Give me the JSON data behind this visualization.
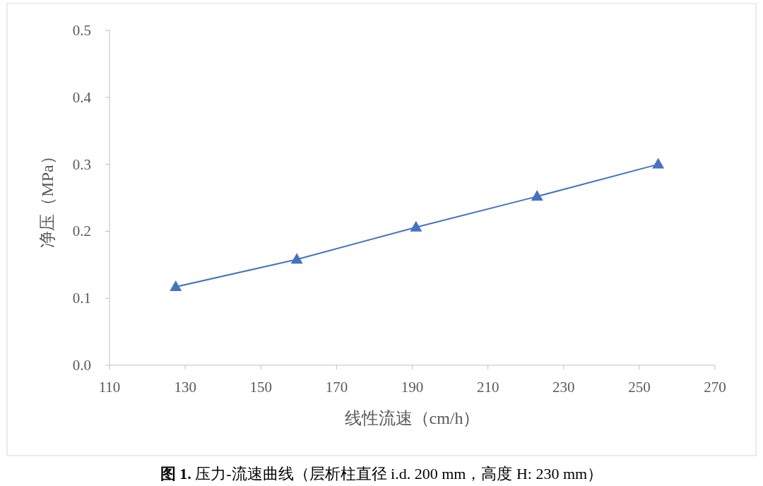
{
  "chart_data": {
    "type": "line",
    "xlabel": "线性流速（cm/h）",
    "ylabel": "净压（MPa）",
    "x": [
      127.5,
      159.5,
      191,
      223,
      255
    ],
    "series": [
      {
        "color": "#4472c4",
        "values": [
          0.117,
          0.158,
          0.206,
          0.252,
          0.3
        ]
      }
    ],
    "marker": "triangle",
    "line_style": "solid",
    "grid": false,
    "xlim": [
      110,
      270
    ],
    "xticks": [
      110,
      130,
      150,
      170,
      190,
      210,
      230,
      250,
      270
    ],
    "ylim": [
      0,
      0.5
    ],
    "yticks": [
      {
        "value": 0,
        "label": "0.0"
      },
      0.1,
      0.2,
      0.3,
      0.4,
      0.5
    ],
    "annotations": [
      "**图 1.** 压力-流速曲线（层析柱直径 i.d. 200 mm，高度 H: 230 mm）"
    ]
  }
}
